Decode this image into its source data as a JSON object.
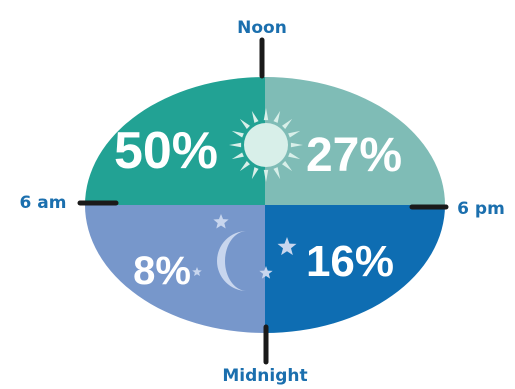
{
  "chart_data": {
    "type": "pie",
    "title": "",
    "time_labels": {
      "top": "Noon",
      "left": "6 am",
      "right": "6 pm",
      "bottom": "Midnight"
    },
    "slices": [
      {
        "period": "6 am to Noon",
        "value": 50,
        "label": "50%",
        "color": "#22a294"
      },
      {
        "period": "Noon to 6 pm",
        "value": 27,
        "label": "27%",
        "color": "#7fbcb6"
      },
      {
        "period": "6 pm to Midnight",
        "value": 16,
        "label": "16%",
        "color": "#0e6db2"
      },
      {
        "period": "Midnight to 6 am",
        "value": 8,
        "label": "8%",
        "color": "#7797cb"
      }
    ],
    "tick_color": "#1a1a1a",
    "icons": {
      "day": "sun-icon",
      "night": "moon-icon",
      "night_extra": "star-icon",
      "day_color": "#d8efe9",
      "night_color": "#c8d6ee"
    }
  }
}
